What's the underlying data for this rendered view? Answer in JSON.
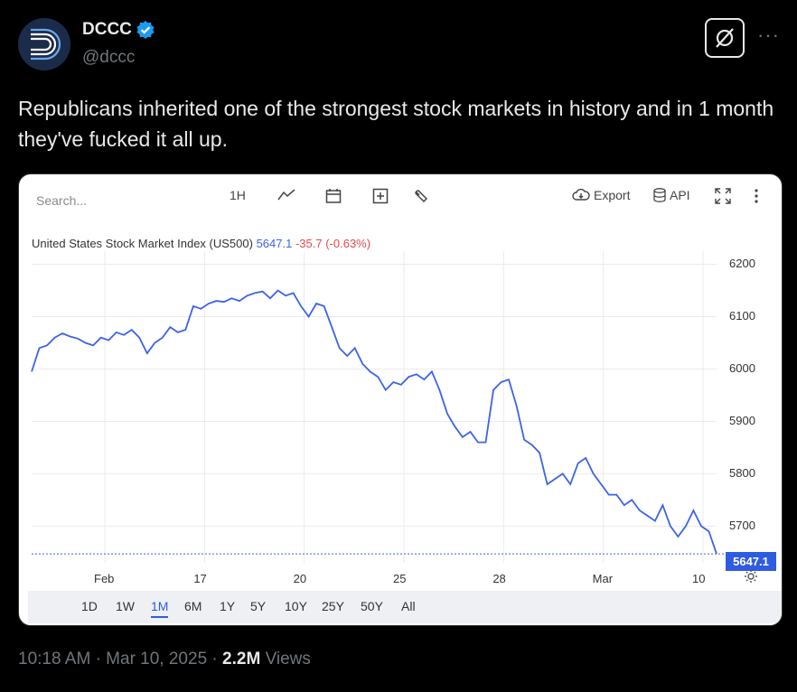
{
  "user": {
    "name": "DCCC",
    "handle": "@dccc",
    "verified_icon": "verified-badge-icon"
  },
  "tweet": {
    "text": "Republicans inherited one of the strongest stock markets in history and in 1 month they've fucked it all up."
  },
  "chart_toolbar": {
    "search_placeholder": "Search...",
    "interval": "1H",
    "export_label": "Export",
    "api_label": "API"
  },
  "chart_header": {
    "title": "United States Stock Market Index (US500)",
    "price": "5647.1",
    "change": "-35.7 (-0.63%)"
  },
  "chart_data": {
    "type": "line",
    "title": "United States Stock Market Index (US500)",
    "x_tick_labels": [
      "Feb",
      "17",
      "20",
      "25",
      "28",
      "Mar",
      "10"
    ],
    "y_tick_labels": [
      "6200",
      "6100",
      "6000",
      "5900",
      "5800",
      "5700"
    ],
    "ylim": [
      5630,
      6225
    ],
    "last_value_label": "5647.1",
    "series": [
      {
        "values": [
          5995,
          6040,
          6045,
          6060,
          6068,
          6062,
          6058,
          6050,
          6045,
          6060,
          6055,
          6070,
          6065,
          6075,
          6060,
          6030,
          6050,
          6060,
          6080,
          6070,
          6075,
          6120,
          6115,
          6125,
          6130,
          6128,
          6135,
          6130,
          6140,
          6145,
          6148,
          6135,
          6150,
          6140,
          6145,
          6120,
          6100,
          6125,
          6120,
          6080,
          6040,
          6025,
          6040,
          6010,
          5995,
          5985,
          5960,
          5975,
          5970,
          5985,
          5990,
          5980,
          5995,
          5960,
          5915,
          5890,
          5870,
          5880,
          5860,
          5860,
          5960,
          5975,
          5980,
          5930,
          5865,
          5855,
          5840,
          5780,
          5790,
          5800,
          5780,
          5820,
          5830,
          5800,
          5780,
          5760,
          5760,
          5740,
          5750,
          5730,
          5720,
          5710,
          5740,
          5700,
          5680,
          5700,
          5730,
          5700,
          5690,
          5647.1
        ]
      }
    ]
  },
  "range_tabs": [
    "1D",
    "1W",
    "1M",
    "6M",
    "1Y",
    "5Y",
    "10Y",
    "25Y",
    "50Y",
    "All"
  ],
  "range_active": "1M",
  "footer": {
    "time": "10:18 AM",
    "date": "Mar 10, 2025",
    "views_count": "2.2M",
    "views_label": "Views"
  },
  "colors": {
    "line": "#3d63e6",
    "accent": "#2f5be0",
    "negative": "#e5484d"
  }
}
